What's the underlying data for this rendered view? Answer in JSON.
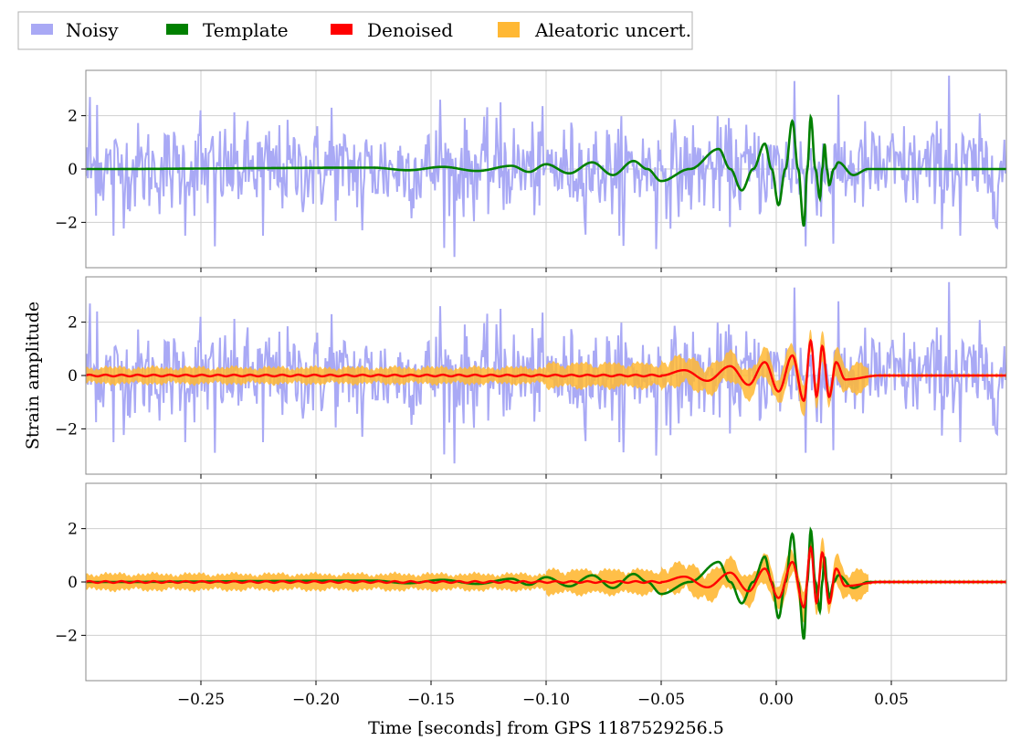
{
  "chart_data": {
    "type": "line",
    "xlabel": "Time [seconds] from GPS 1187529256.5",
    "ylabel": "Strain amplitude",
    "xlim": [
      -0.3,
      0.1
    ],
    "ylim": [
      -3.7,
      3.7
    ],
    "xticks": [
      -0.25,
      -0.2,
      -0.15,
      -0.1,
      -0.05,
      0.0,
      0.05
    ],
    "xtick_labels": [
      "−0.25",
      "−0.20",
      "−0.15",
      "−0.10",
      "−0.05",
      "0.00",
      "0.05"
    ],
    "yticks": [
      -2,
      0,
      2
    ],
    "ytick_labels": [
      "−2",
      "0",
      "2"
    ],
    "grid": true,
    "legend": {
      "placement": "top-left, above panels",
      "entries": [
        {
          "label": "Noisy",
          "color": "#a9a9f5"
        },
        {
          "label": "Template",
          "color": "#008000"
        },
        {
          "label": "Denoised",
          "color": "#ff0000"
        },
        {
          "label": "Aleatoric uncert.",
          "color": "#ffb834"
        }
      ]
    },
    "panels": [
      {
        "name": "top",
        "series": [
          "Noisy",
          "Template"
        ]
      },
      {
        "name": "middle",
        "series": [
          "Noisy",
          "Aleatoric uncert.",
          "Denoised"
        ]
      },
      {
        "name": "bottom",
        "series": [
          "Aleatoric uncert.",
          "Template",
          "Denoised"
        ]
      }
    ],
    "template_peaks": [
      {
        "x": -0.175,
        "y": 0.05
      },
      {
        "x": -0.145,
        "y": 0.08
      },
      {
        "x": -0.115,
        "y": 0.12
      },
      {
        "x": -0.1,
        "y": 0.18
      },
      {
        "x": -0.08,
        "y": 0.25
      },
      {
        "x": -0.062,
        "y": 0.3
      },
      {
        "x": -0.05,
        "y": -0.45
      },
      {
        "x": -0.025,
        "y": 0.75
      },
      {
        "x": -0.015,
        "y": -0.8
      },
      {
        "x": -0.005,
        "y": 0.95
      },
      {
        "x": 0.001,
        "y": -1.35
      },
      {
        "x": 0.007,
        "y": 1.8
      },
      {
        "x": 0.012,
        "y": -2.15
      },
      {
        "x": 0.015,
        "y": 1.95
      },
      {
        "x": 0.019,
        "y": -1.1
      },
      {
        "x": 0.021,
        "y": 0.95
      },
      {
        "x": 0.023,
        "y": -0.6
      },
      {
        "x": 0.027,
        "y": 0.25
      },
      {
        "x": 0.04,
        "y": 0.0
      }
    ],
    "denoised_peaks": [
      {
        "x": -0.05,
        "y": 0.0
      },
      {
        "x": -0.04,
        "y": 0.2
      },
      {
        "x": -0.03,
        "y": -0.2
      },
      {
        "x": -0.02,
        "y": 0.35
      },
      {
        "x": -0.012,
        "y": -0.35
      },
      {
        "x": -0.005,
        "y": 0.5
      },
      {
        "x": 0.001,
        "y": -0.6
      },
      {
        "x": 0.007,
        "y": 0.75
      },
      {
        "x": 0.012,
        "y": -0.95
      },
      {
        "x": 0.015,
        "y": 1.3
      },
      {
        "x": 0.02,
        "y": 1.1
      },
      {
        "x": 0.023,
        "y": -0.8
      },
      {
        "x": 0.026,
        "y": 0.5
      },
      {
        "x": 0.03,
        "y": -0.15
      },
      {
        "x": 0.045,
        "y": 0.0
      }
    ],
    "noise_std": 1.0,
    "noise_extremes": [
      {
        "x": -0.298,
        "y": 2.7
      },
      {
        "x": -0.295,
        "y": 2.4
      },
      {
        "x": -0.288,
        "y": -2.5
      },
      {
        "x": -0.257,
        "y": -2.5
      },
      {
        "x": -0.25,
        "y": 2.2
      },
      {
        "x": -0.244,
        "y": -2.9
      },
      {
        "x": -0.223,
        "y": -2.5
      },
      {
        "x": -0.193,
        "y": 2.3
      },
      {
        "x": -0.18,
        "y": -2.3
      },
      {
        "x": -0.146,
        "y": 2.6
      },
      {
        "x": -0.14,
        "y": -3.3
      },
      {
        "x": -0.12,
        "y": 2.5
      },
      {
        "x": -0.068,
        "y": -2.5
      },
      {
        "x": -0.052,
        "y": -3.0
      },
      {
        "x": 0.008,
        "y": 3.3
      },
      {
        "x": 0.013,
        "y": -2.9
      },
      {
        "x": 0.025,
        "y": -2.8
      },
      {
        "x": 0.075,
        "y": 3.5
      },
      {
        "x": 0.08,
        "y": -2.5
      },
      {
        "x": 0.096,
        "y": -2.2
      }
    ],
    "uncert_halfwidth_early": 0.25,
    "uncert_halfwidth_peak": 0.5
  }
}
